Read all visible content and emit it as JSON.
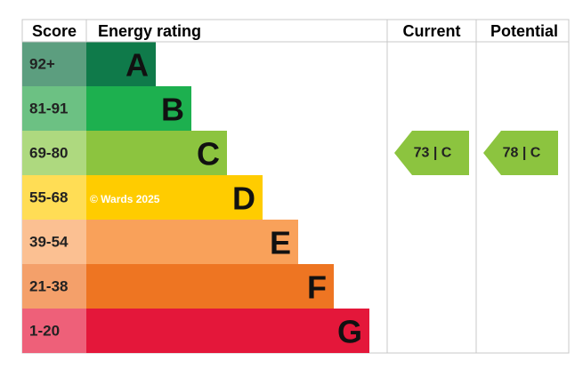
{
  "header": {
    "score": "Score",
    "energy_rating": "Energy rating",
    "current": "Current",
    "potential": "Potential"
  },
  "bands": [
    {
      "score": "92+",
      "letter": "A"
    },
    {
      "score": "81-91",
      "letter": "B"
    },
    {
      "score": "69-80",
      "letter": "C"
    },
    {
      "score": "55-68",
      "letter": "D"
    },
    {
      "score": "39-54",
      "letter": "E"
    },
    {
      "score": "21-38",
      "letter": "F"
    },
    {
      "score": "1-20",
      "letter": "G"
    }
  ],
  "current": {
    "label": "73 | C"
  },
  "potential": {
    "label": "78 | C"
  },
  "watermark": "© Wards 2025"
}
